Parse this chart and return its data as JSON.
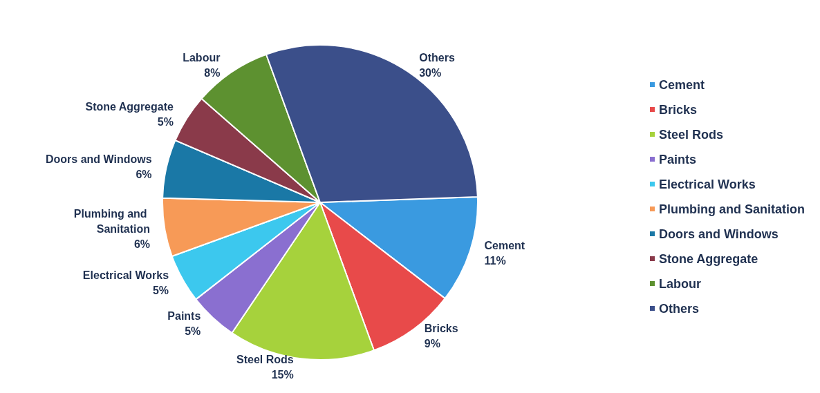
{
  "chart_data": {
    "type": "pie",
    "categories": [
      "Cement",
      "Bricks",
      "Steel Rods",
      "Paints",
      "Electrical Works",
      "Plumbing and Sanitation",
      "Doors and Windows",
      "Stone Aggregate",
      "Labour",
      "Others"
    ],
    "values": [
      11,
      9,
      15,
      5,
      5,
      6,
      6,
      5,
      8,
      30
    ],
    "colors": [
      "#3a9ae0",
      "#e84a4a",
      "#a6d23c",
      "#8a6fd0",
      "#3cc8ee",
      "#f79a57",
      "#1a78a6",
      "#8a3a4a",
      "#5d9130",
      "#3b4f8a"
    ],
    "value_labels": [
      "11%",
      "9%",
      "15%",
      "5%",
      "5%",
      "6%",
      "6%",
      "5%",
      "8%",
      "30%"
    ],
    "legend": "right"
  }
}
